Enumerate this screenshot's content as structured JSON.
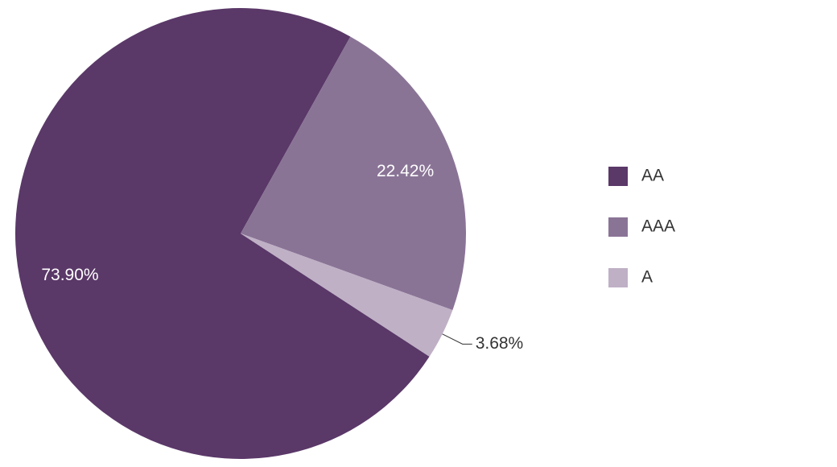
{
  "chart_data": {
    "type": "pie",
    "categories": [
      "AA",
      "AAA",
      "A"
    ],
    "values": [
      73.9,
      22.42,
      3.68
    ],
    "value_labels": [
      "73.90%",
      "22.42%",
      "3.68%"
    ],
    "colors": [
      "#5a3868",
      "#8a7496",
      "#bfb0c6"
    ],
    "legend": "right"
  }
}
